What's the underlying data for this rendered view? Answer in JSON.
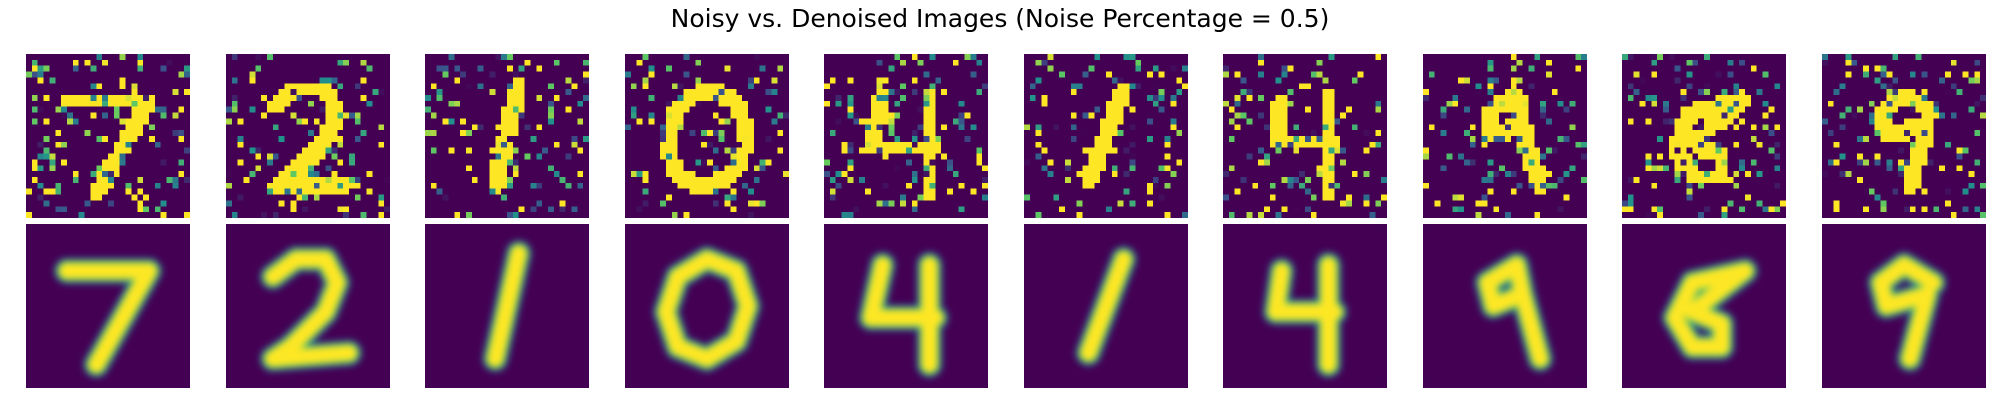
{
  "figure": {
    "title": "Noisy vs. Denoised Images (Noise Percentage = 0.5)"
  },
  "colormap": {
    "name": "viridis",
    "low": "#440154",
    "mid": "#21918c",
    "high": "#fde725"
  },
  "noise_percentage": 0.5,
  "rows": [
    {
      "name": "noisy",
      "style": "pixelated-noisy"
    },
    {
      "name": "denoised",
      "style": "smooth"
    }
  ],
  "digits": [
    "7",
    "2",
    "1",
    "0",
    "4",
    "1",
    "4",
    "9",
    "6",
    "9"
  ]
}
